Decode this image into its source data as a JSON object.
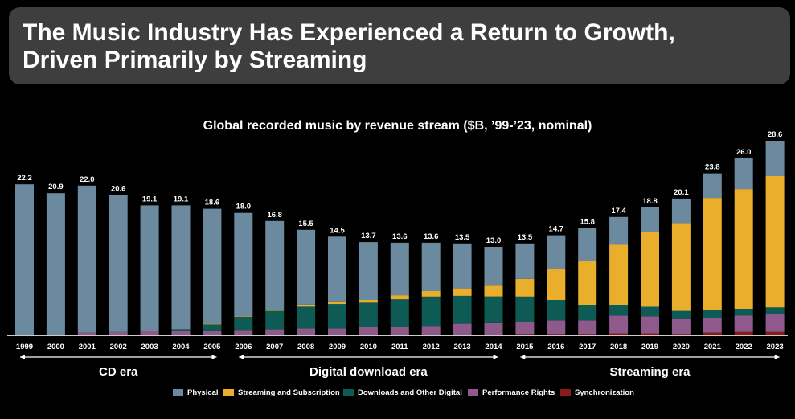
{
  "header": {
    "title_line1": "The Music Industry Has Experienced a Return to Growth,",
    "title_line2": "Driven Primarily by Streaming"
  },
  "chart_data": {
    "type": "bar",
    "stacked": true,
    "title": "Global recorded music by revenue stream ($B, ’99-’23, nominal)",
    "categories": [
      "1999",
      "2000",
      "2001",
      "2002",
      "2003",
      "2004",
      "2005",
      "2006",
      "2007",
      "2008",
      "2009",
      "2010",
      "2011",
      "2012",
      "2013",
      "2014",
      "2015",
      "2016",
      "2017",
      "2018",
      "2019",
      "2020",
      "2021",
      "2022",
      "2023"
    ],
    "totals": [
      "22.2",
      "20.9",
      "22.0",
      "20.6",
      "19.1",
      "19.1",
      "18.6",
      "18.0",
      "16.8",
      "15.5",
      "14.5",
      "13.7",
      "13.6",
      "13.6",
      "13.5",
      "13.0",
      "13.5",
      "14.7",
      "15.8",
      "17.4",
      "18.8",
      "20.1",
      "23.8",
      "26.0",
      "28.6"
    ],
    "ylim": [
      0,
      29
    ],
    "series": [
      {
        "name": "Synchronization",
        "color": "#8b1a1a",
        "values": [
          0,
          0,
          0,
          0,
          0,
          0,
          0,
          0,
          0,
          0,
          0,
          0,
          0,
          0,
          0.1,
          0.1,
          0.2,
          0.2,
          0.2,
          0.3,
          0.3,
          0.2,
          0.4,
          0.5,
          0.5
        ]
      },
      {
        "name": "Performance Rights",
        "color": "#8e5a8c",
        "values": [
          0,
          0,
          0.4,
          0.5,
          0.6,
          0.7,
          0.7,
          0.8,
          0.9,
          1.0,
          1.0,
          1.2,
          1.3,
          1.4,
          1.6,
          1.7,
          1.8,
          2.0,
          2.0,
          2.6,
          2.5,
          2.2,
          2.2,
          2.4,
          2.6
        ]
      },
      {
        "name": "Downloads and Other Digital",
        "color": "#0e5a55",
        "values": [
          0,
          0,
          0,
          0,
          0,
          0.2,
          0.9,
          1.9,
          2.7,
          3.2,
          3.6,
          3.6,
          4.0,
          4.3,
          4.1,
          3.9,
          3.7,
          3.0,
          2.3,
          1.6,
          1.4,
          1.2,
          1.1,
          1.0,
          1.0
        ]
      },
      {
        "name": "Streaming and Subscription",
        "color": "#e9ae2c",
        "values": [
          0,
          0,
          0,
          0,
          0,
          0,
          0.1,
          0.1,
          0.1,
          0.3,
          0.4,
          0.4,
          0.6,
          0.8,
          1.1,
          1.6,
          2.6,
          4.5,
          6.4,
          8.8,
          11.0,
          12.9,
          16.5,
          17.6,
          19.3
        ]
      },
      {
        "name": "Physical",
        "color": "#6b8aa0",
        "values": [
          22.2,
          20.9,
          21.6,
          20.1,
          18.5,
          18.2,
          16.9,
          15.2,
          13.1,
          11.0,
          9.5,
          8.5,
          7.7,
          7.1,
          6.6,
          5.7,
          5.2,
          5.0,
          4.9,
          4.1,
          3.6,
          3.6,
          3.6,
          4.5,
          5.2
        ]
      }
    ],
    "eras": [
      {
        "label": "CD era",
        "from": "1999",
        "to": "2005"
      },
      {
        "label": "Digital download era",
        "from": "2006",
        "to": "2014"
      },
      {
        "label": "Streaming era",
        "from": "2015",
        "to": "2023"
      }
    ],
    "legend": [
      "Physical",
      "Streaming and Subscription",
      "Downloads and Other Digital",
      "Performance Rights",
      "Synchronization"
    ],
    "legend_colors": [
      "#6b8aa0",
      "#e9ae2c",
      "#0e5a55",
      "#8e5a8c",
      "#8b1a1a"
    ]
  }
}
